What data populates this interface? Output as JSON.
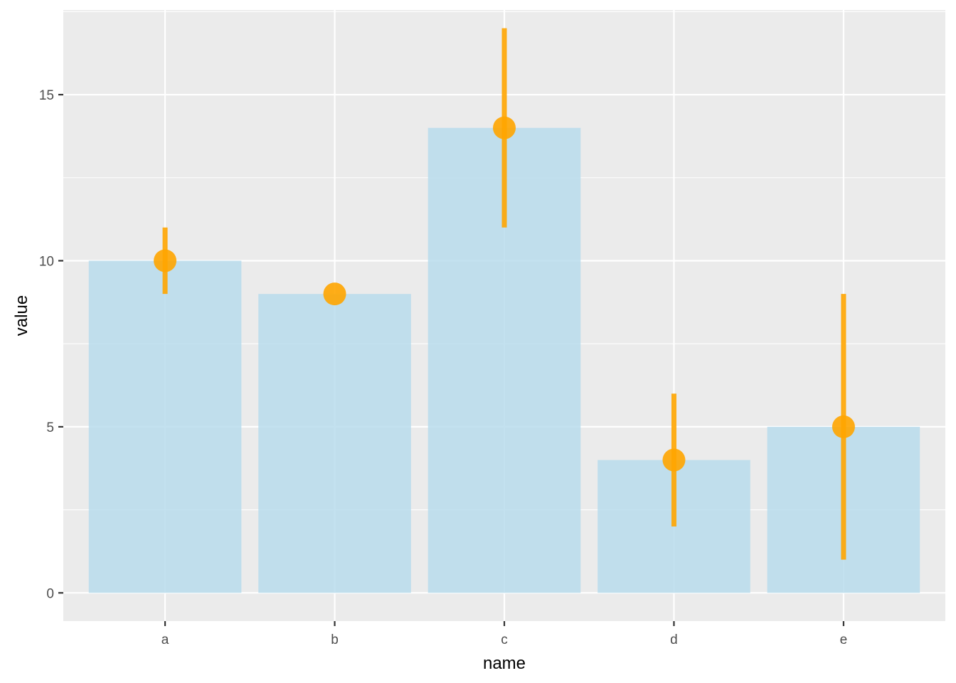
{
  "chart_data": {
    "type": "bar",
    "title": "",
    "xlabel": "name",
    "ylabel": "value",
    "categories": [
      "a",
      "b",
      "c",
      "d",
      "e"
    ],
    "values": [
      10,
      9,
      14,
      4,
      5
    ],
    "error_low": [
      9,
      9,
      11,
      2,
      1
    ],
    "error_high": [
      11,
      9,
      17,
      6,
      9
    ],
    "ylim": [
      -0.85,
      17.55
    ],
    "yticks": [
      0,
      5,
      10,
      15
    ],
    "ytick_labels": [
      "0",
      "5",
      "10",
      "15"
    ],
    "grid": true,
    "legend": "none",
    "colors": {
      "bar_fill": "#b9dcec",
      "point": "#ffa500",
      "errorbar": "#ffa500",
      "panel_background": "#ebebeb",
      "grid": "#ffffff"
    }
  }
}
